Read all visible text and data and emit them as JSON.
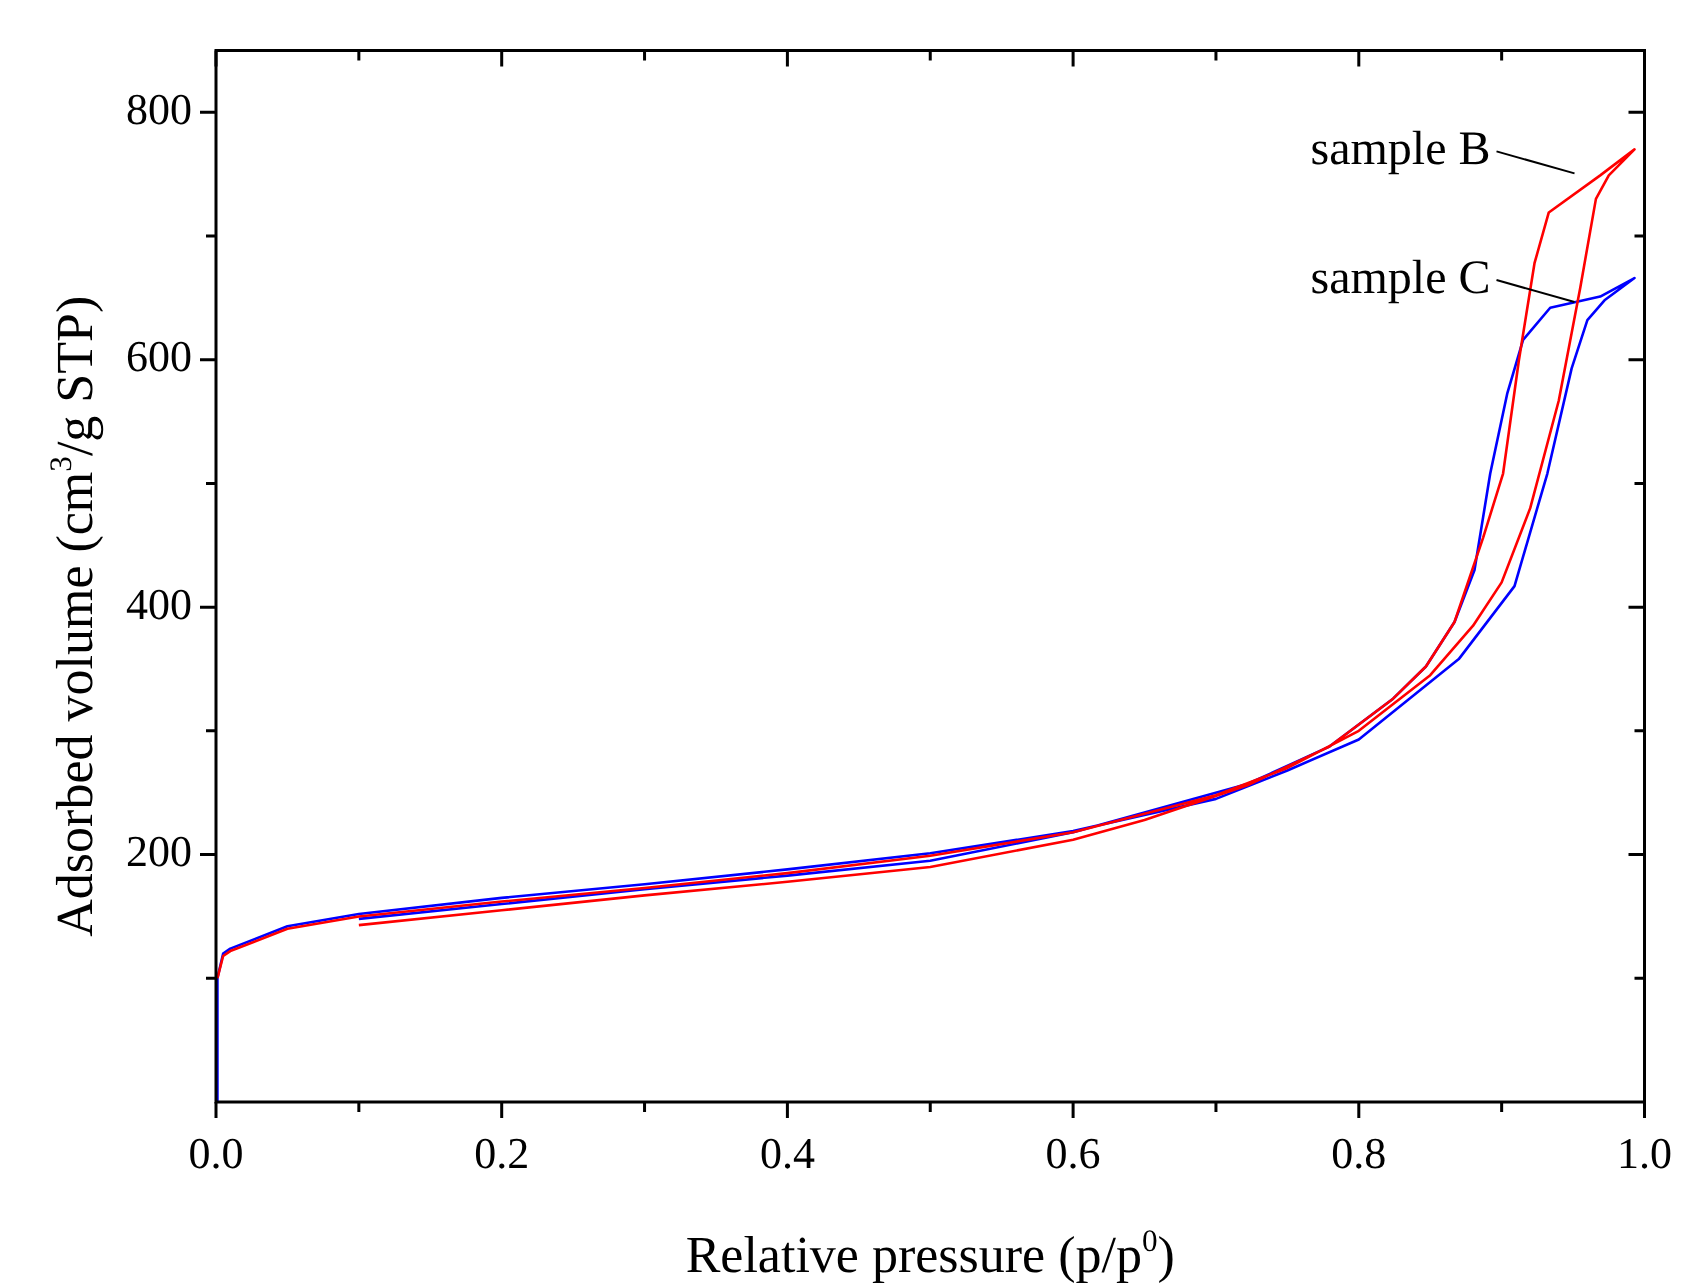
{
  "chart_data": {
    "type": "line",
    "xlabel": "Relative pressure (p/p$^{0}$)",
    "ylabel": "Adsorbed volume (cm$^{3}$/g STP)",
    "xlim": [
      0,
      1
    ],
    "ylim": [
      0,
      850
    ],
    "xticks": [
      {
        "value": 0,
        "label": "0.0"
      },
      {
        "value": 0.1,
        "label": null
      },
      {
        "value": 0.2,
        "label": "0.2"
      },
      {
        "value": 0.3,
        "label": null
      },
      {
        "value": 0.4,
        "label": "0.4"
      },
      {
        "value": 0.5,
        "label": null
      },
      {
        "value": 0.6,
        "label": "0.6"
      },
      {
        "value": 0.7,
        "label": null
      },
      {
        "value": 0.8,
        "label": "0.8"
      },
      {
        "value": 0.9,
        "label": null
      },
      {
        "value": 1,
        "label": "1.0"
      }
    ],
    "yticks": [
      {
        "value": 100,
        "label": null
      },
      200,
      {
        "value": 300,
        "label": null
      },
      400,
      {
        "value": 500,
        "label": null
      },
      600,
      {
        "value": 700,
        "label": null
      },
      800
    ],
    "grid": false,
    "legend": false,
    "marker": "none",
    "line_style": "solid",
    "series": [
      {
        "name": "sample B",
        "color": "#ff0000",
        "x": [
          0.001,
          0.005,
          0.01,
          0.05,
          0.1,
          0.2,
          0.3,
          0.4,
          0.5,
          0.6,
          0.7,
          0.75,
          0.8,
          0.85,
          0.88,
          0.9,
          0.92,
          0.94,
          0.955,
          0.966,
          0.975,
          0.993,
          0.969,
          0.933,
          0.923,
          0.912,
          0.901,
          0.887,
          0.867,
          0.847,
          0.824,
          0.779,
          0.722,
          0.65,
          0.6,
          0.5,
          0.4,
          0.3,
          0.2,
          0.1
        ],
        "values": [
          100,
          118,
          122,
          140,
          150,
          162,
          173,
          185,
          199,
          218,
          248,
          270,
          300,
          345,
          385,
          420,
          480,
          567,
          658,
          730,
          749,
          770,
          749,
          719,
          678,
          599,
          508,
          456,
          388,
          352,
          326,
          287,
          256,
          228,
          212,
          190,
          178,
          167,
          155,
          143
        ]
      },
      {
        "name": "sample C",
        "color": "#0000ff",
        "x": [
          0,
          0.001,
          0.005,
          0.01,
          0.05,
          0.1,
          0.2,
          0.3,
          0.4,
          0.5,
          0.6,
          0.7,
          0.75,
          0.8,
          0.87,
          0.909,
          0.932,
          0.949,
          0.96,
          0.972,
          0.993,
          0.969,
          0.934,
          0.915,
          0.904,
          0.892,
          0.881,
          0.867,
          0.847,
          0.824,
          0.779,
          0.722,
          0.6,
          0.5,
          0.4,
          0.3,
          0.2,
          0.1
        ],
        "values": [
          0,
          100,
          120,
          124,
          142,
          152,
          165,
          176,
          188,
          201,
          219,
          245,
          268,
          293,
          358,
          417,
          508,
          593,
          632,
          648,
          666,
          651,
          642,
          616,
          573,
          508,
          430,
          388,
          352,
          326,
          287,
          257,
          218,
          195,
          183,
          172,
          160,
          148
        ]
      }
    ]
  }
}
